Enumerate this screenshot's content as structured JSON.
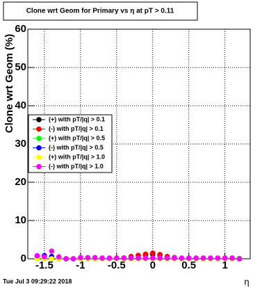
{
  "chart_data": {
    "type": "scatter",
    "title": "Clone wrt Geom for Primary vs   η at pT > 0.11",
    "x_label": "η",
    "y_label": "Clone wrt Geom (%)",
    "timestamp": "Tue Jul  3 09:29:22 2018",
    "x": [
      -1.6,
      -1.5,
      -1.4,
      -1.3,
      -1.2,
      -1.1,
      -1.0,
      -0.9,
      -0.8,
      -0.7,
      -0.6,
      -0.5,
      -0.4,
      -0.3,
      -0.2,
      -0.1,
      0.0,
      0.1,
      0.2,
      0.3,
      0.4,
      0.5,
      0.6,
      0.7,
      0.8,
      0.9,
      1.0,
      1.1,
      1.2
    ],
    "series": [
      {
        "name": "(+) with pT/|q| > 0.1",
        "color": "#000000",
        "values": [
          0,
          0,
          0,
          0,
          0,
          0,
          0,
          0,
          0,
          0,
          0,
          0,
          0.2,
          0.5,
          0.8,
          1.0,
          1.2,
          0.9,
          0.5,
          0.2,
          0,
          0,
          0,
          0,
          0,
          0,
          0,
          0,
          0
        ]
      },
      {
        "name": "(-) with pT/|q| > 0.1",
        "color": "#ff0000",
        "values": [
          0,
          0,
          0,
          0,
          0,
          0,
          0,
          0,
          0,
          0,
          0,
          0,
          0.2,
          0.6,
          0.9,
          1.2,
          1.5,
          1.1,
          0.6,
          0.3,
          0,
          0,
          0,
          0,
          0,
          0,
          0,
          0,
          0
        ]
      },
      {
        "name": "(+) with pT/|q| > 0.5",
        "color": "#00ff00",
        "values": [
          0,
          0,
          0,
          0,
          0,
          0,
          0,
          0,
          0,
          0,
          0,
          0,
          0,
          0,
          0,
          0,
          0,
          0,
          0,
          0,
          0,
          0,
          0,
          0,
          0,
          0,
          0,
          0,
          0.1
        ]
      },
      {
        "name": "(-) with pT/|q| > 0.5",
        "color": "#0000ff",
        "values": [
          0.5,
          0.8,
          0.6,
          0,
          0,
          0,
          0,
          0,
          0,
          0,
          0,
          0,
          0,
          0,
          0,
          0,
          0,
          0,
          0,
          0,
          0,
          0,
          0,
          0,
          0,
          0,
          0,
          0,
          0
        ]
      },
      {
        "name": "(+) with pT/|q| > 1.0",
        "color": "#ffff00",
        "values": [
          0,
          0,
          0,
          0,
          0,
          0,
          0,
          0,
          0,
          0,
          0,
          0,
          0,
          0,
          0,
          0,
          0,
          0,
          0,
          0,
          0,
          0,
          0,
          0,
          0,
          0,
          0,
          0,
          0
        ]
      },
      {
        "name": "(-) with pT/|q| > 1.0",
        "color": "#ff00ff",
        "values": [
          0.8,
          0.5,
          2.0,
          0.5,
          0,
          0,
          0.3,
          0.3,
          0.3,
          0.2,
          0.2,
          0.2,
          0.2,
          0.2,
          0.2,
          0.2,
          0.2,
          0.2,
          0.2,
          0.2,
          0.2,
          0.2,
          0.2,
          0.2,
          0.2,
          0.2,
          0.2,
          0.2,
          0
        ]
      }
    ],
    "xlim": [
      -1.73,
      1.35
    ],
    "ylim": [
      0,
      60
    ],
    "xticks": [
      -1.5,
      -1,
      -0.5,
      0,
      0.5,
      1
    ],
    "yticks": [
      0,
      10,
      20,
      30,
      40,
      50,
      60
    ],
    "grid": true,
    "legend": "left"
  }
}
